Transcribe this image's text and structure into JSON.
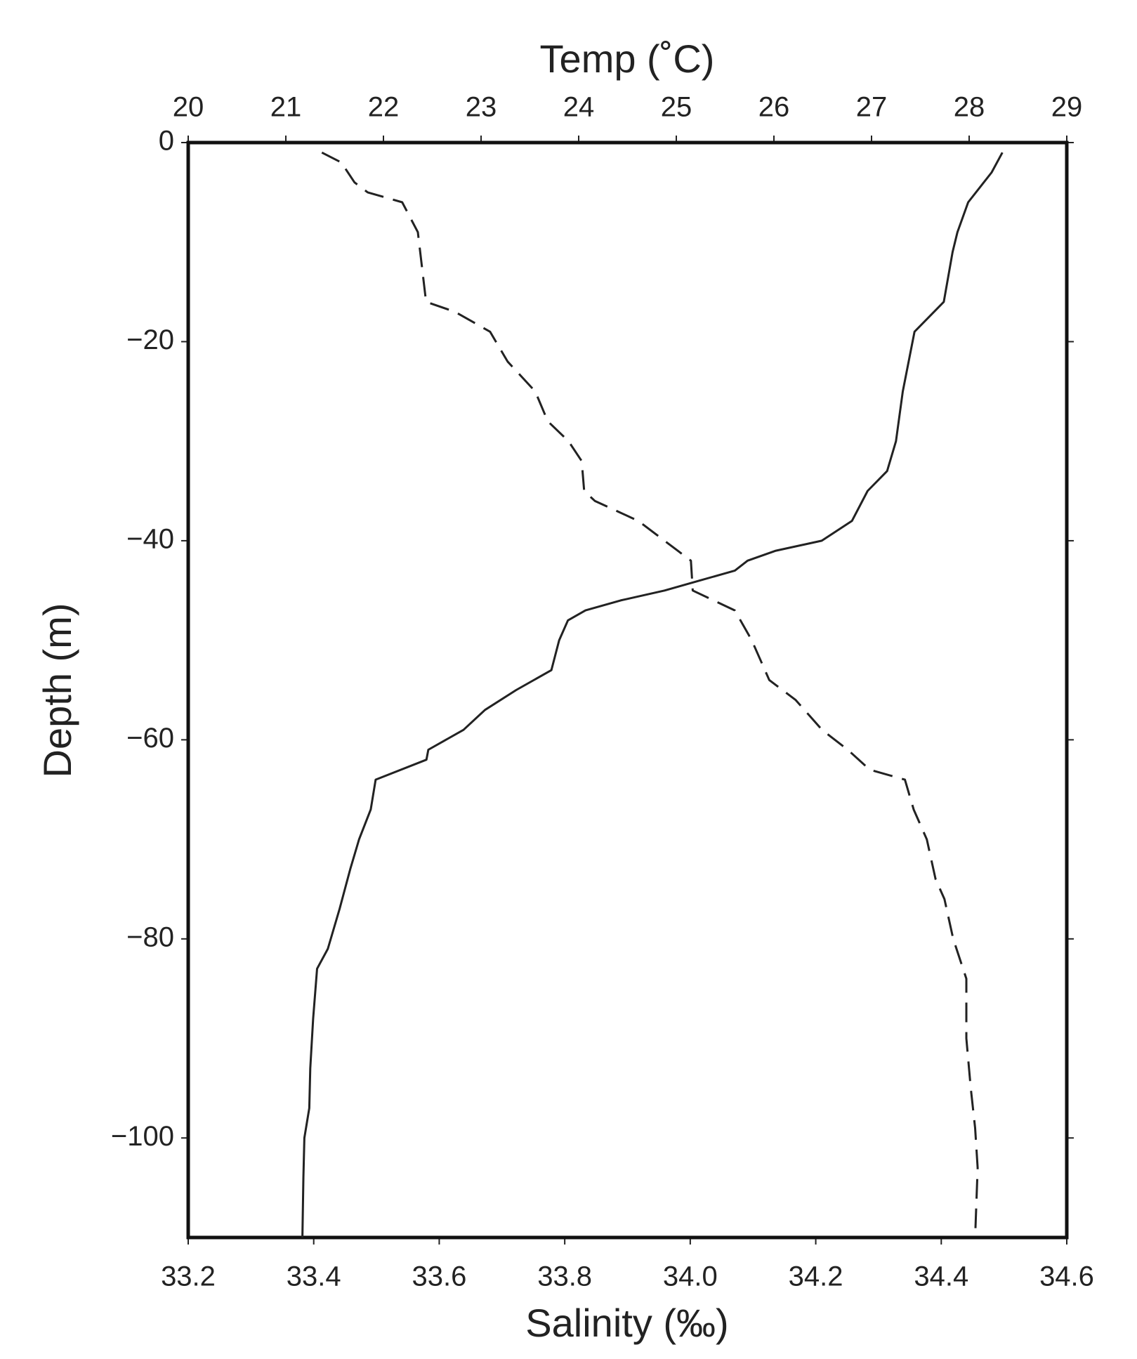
{
  "chart_data": {
    "type": "profile",
    "xlabel": "Salinity (‰)",
    "x2label": "Temp (˚C)",
    "ylabel": "Depth (m)",
    "xlim": [
      33.2,
      34.6
    ],
    "xticks": [
      33.2,
      33.4,
      33.6,
      33.8,
      {
        "value": 34,
        "label": "34.0"
      },
      34.2,
      34.4,
      34.6
    ],
    "x2lim": [
      20,
      29
    ],
    "x2ticks": [
      20,
      21,
      22,
      23,
      24,
      25,
      26,
      27,
      28,
      29
    ],
    "ylim": [
      -110,
      0
    ],
    "yticks": [
      0,
      {
        "value": -20,
        "label": "−20"
      },
      {
        "value": -40,
        "label": "−40"
      },
      {
        "value": -60,
        "label": "−60"
      },
      {
        "value": -80,
        "label": "−80"
      },
      {
        "value": -100,
        "label": "−100"
      }
    ],
    "series": [
      {
        "axis": "x2",
        "color": "#222222",
        "dashed": false,
        "y": [
          -1,
          -3,
          -6,
          -9,
          -11,
          -16,
          -19,
          -25,
          -30,
          -33,
          -35,
          -38,
          -40,
          -41,
          -42,
          -43,
          -44,
          -45,
          -46,
          -47,
          -48,
          -50,
          -53,
          -55,
          -57,
          -59,
          -61,
          -62,
          -64,
          -67,
          -70,
          -73,
          -77,
          -81,
          -83,
          -88,
          -93,
          -97,
          -100,
          -104,
          -110
        ],
        "x": [
          28.34,
          28.23,
          27.99,
          27.88,
          27.83,
          27.74,
          27.44,
          27.32,
          27.25,
          27.16,
          26.96,
          26.8,
          26.49,
          26.02,
          25.73,
          25.6,
          25.24,
          24.88,
          24.43,
          24.07,
          23.89,
          23.8,
          23.72,
          23.36,
          23.04,
          22.82,
          22.46,
          22.44,
          21.92,
          21.87,
          21.75,
          21.66,
          21.55,
          21.43,
          21.32,
          21.28,
          21.25,
          21.24,
          21.19,
          21.18,
          21.17
        ]
      },
      {
        "axis": "x",
        "color": "#222222",
        "dashed": true,
        "y": [
          -1,
          -2,
          -4,
          -5,
          -6,
          -9,
          -16,
          -17,
          -19,
          -22,
          -25,
          -28,
          -30,
          -32,
          -35,
          -36,
          -38,
          -41,
          -42,
          -45,
          -47,
          -50,
          -54,
          -56,
          -59,
          -61,
          -63,
          -64,
          -67,
          -70,
          -74,
          -76,
          -80,
          -84,
          -90,
          -95,
          -99,
          -103,
          -110
        ],
        "x": [
          33.413,
          33.444,
          33.465,
          33.486,
          33.541,
          33.566,
          33.579,
          33.625,
          33.681,
          33.709,
          33.753,
          33.773,
          33.806,
          33.827,
          33.831,
          33.848,
          33.917,
          33.98,
          34.001,
          34.004,
          34.071,
          34.098,
          34.126,
          34.168,
          34.21,
          34.251,
          34.286,
          34.342,
          34.356,
          34.377,
          34.391,
          34.405,
          34.419,
          34.44,
          34.44,
          34.447,
          34.454,
          34.458,
          34.454
        ]
      }
    ]
  }
}
